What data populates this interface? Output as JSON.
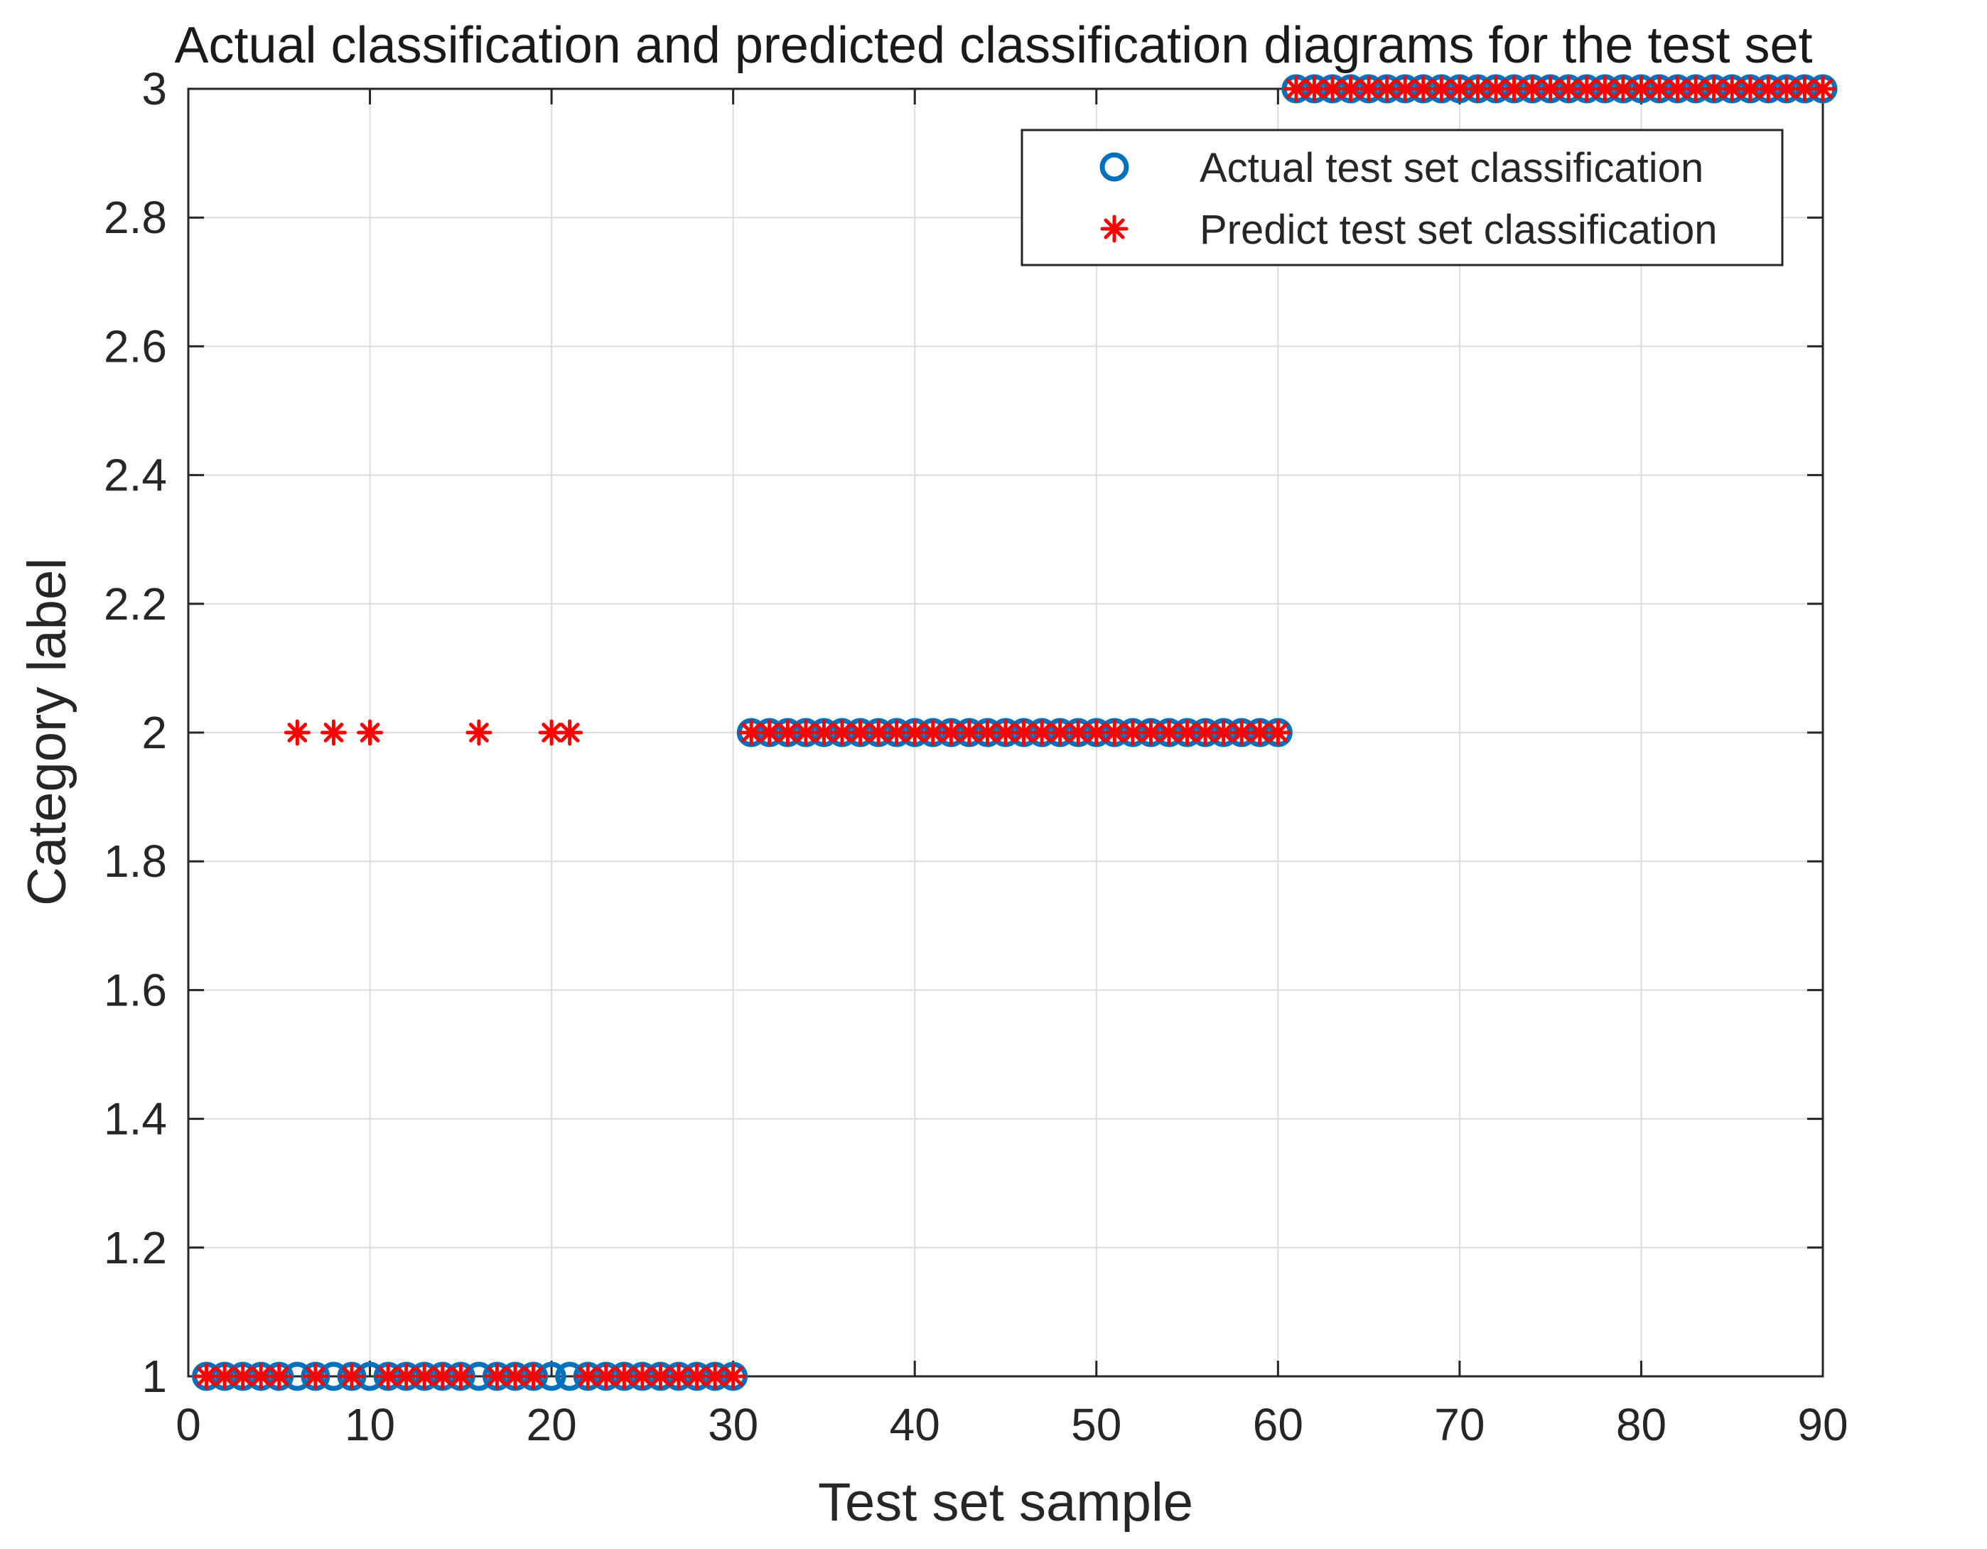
{
  "chart_data": {
    "type": "scatter",
    "title": "Actual classification and predicted classification diagrams for the test set",
    "xlabel": "Test set sample",
    "ylabel": "Category label",
    "xlim": [
      0,
      90
    ],
    "ylim": [
      1,
      3
    ],
    "xticks": [
      0,
      10,
      20,
      30,
      40,
      50,
      60,
      70,
      80,
      90
    ],
    "yticks": [
      1,
      1.2,
      1.4,
      1.6,
      1.8,
      2,
      2.2,
      2.4,
      2.6,
      2.8,
      3
    ],
    "xtick_labels": [
      "0",
      "10",
      "20",
      "30",
      "40",
      "50",
      "60",
      "70",
      "80",
      "90"
    ],
    "ytick_labels": [
      "1",
      "1.2",
      "1.4",
      "1.6",
      "1.8",
      "2",
      "2.2",
      "2.4",
      "2.6",
      "2.8",
      "3"
    ],
    "grid": true,
    "legend_position": "top-right",
    "series": [
      {
        "name": "Actual test set classification",
        "marker": "circle",
        "color": "#0072BD",
        "x": [
          1,
          2,
          3,
          4,
          5,
          6,
          7,
          8,
          9,
          10,
          11,
          12,
          13,
          14,
          15,
          16,
          17,
          18,
          19,
          20,
          21,
          22,
          23,
          24,
          25,
          26,
          27,
          28,
          29,
          30,
          31,
          32,
          33,
          34,
          35,
          36,
          37,
          38,
          39,
          40,
          41,
          42,
          43,
          44,
          45,
          46,
          47,
          48,
          49,
          50,
          51,
          52,
          53,
          54,
          55,
          56,
          57,
          58,
          59,
          60,
          61,
          62,
          63,
          64,
          65,
          66,
          67,
          68,
          69,
          70,
          71,
          72,
          73,
          74,
          75,
          76,
          77,
          78,
          79,
          80,
          81,
          82,
          83,
          84,
          85,
          86,
          87,
          88,
          89,
          90
        ],
        "y": [
          1,
          1,
          1,
          1,
          1,
          1,
          1,
          1,
          1,
          1,
          1,
          1,
          1,
          1,
          1,
          1,
          1,
          1,
          1,
          1,
          1,
          1,
          1,
          1,
          1,
          1,
          1,
          1,
          1,
          1,
          2,
          2,
          2,
          2,
          2,
          2,
          2,
          2,
          2,
          2,
          2,
          2,
          2,
          2,
          2,
          2,
          2,
          2,
          2,
          2,
          2,
          2,
          2,
          2,
          2,
          2,
          2,
          2,
          2,
          2,
          3,
          3,
          3,
          3,
          3,
          3,
          3,
          3,
          3,
          3,
          3,
          3,
          3,
          3,
          3,
          3,
          3,
          3,
          3,
          3,
          3,
          3,
          3,
          3,
          3,
          3,
          3,
          3,
          3,
          3
        ]
      },
      {
        "name": "Predict test set classification",
        "marker": "asterisk",
        "color": "#FF0000",
        "x": [
          1,
          2,
          3,
          4,
          5,
          6,
          7,
          8,
          9,
          10,
          11,
          12,
          13,
          14,
          15,
          16,
          17,
          18,
          19,
          20,
          21,
          22,
          23,
          24,
          25,
          26,
          27,
          28,
          29,
          30,
          31,
          32,
          33,
          34,
          35,
          36,
          37,
          38,
          39,
          40,
          41,
          42,
          43,
          44,
          45,
          46,
          47,
          48,
          49,
          50,
          51,
          52,
          53,
          54,
          55,
          56,
          57,
          58,
          59,
          60,
          61,
          62,
          63,
          64,
          65,
          66,
          67,
          68,
          69,
          70,
          71,
          72,
          73,
          74,
          75,
          76,
          77,
          78,
          79,
          80,
          81,
          82,
          83,
          84,
          85,
          86,
          87,
          88,
          89,
          90
        ],
        "y": [
          1,
          1,
          1,
          1,
          1,
          2,
          1,
          2,
          1,
          2,
          1,
          1,
          1,
          1,
          1,
          2,
          1,
          1,
          1,
          2,
          2,
          1,
          1,
          1,
          1,
          1,
          1,
          1,
          1,
          1,
          2,
          2,
          2,
          2,
          2,
          2,
          2,
          2,
          2,
          2,
          2,
          2,
          2,
          2,
          2,
          2,
          2,
          2,
          2,
          2,
          2,
          2,
          2,
          2,
          2,
          2,
          2,
          2,
          2,
          2,
          3,
          3,
          3,
          3,
          3,
          3,
          3,
          3,
          3,
          3,
          3,
          3,
          3,
          3,
          3,
          3,
          3,
          3,
          3,
          3,
          3,
          3,
          3,
          3,
          3,
          3,
          3,
          3,
          3,
          3
        ]
      }
    ]
  },
  "colors": {
    "grid": "#dcdcdc",
    "axis": "#262626",
    "legend_border": "#262626"
  }
}
